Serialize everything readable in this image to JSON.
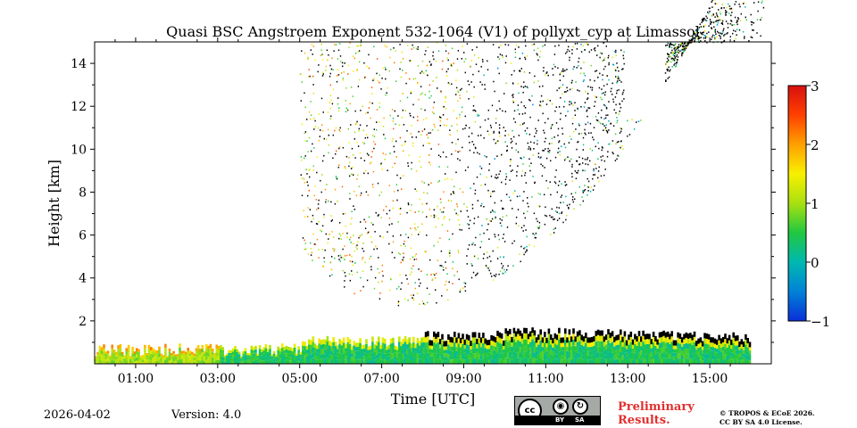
{
  "chart_data": {
    "type": "heatmap",
    "title": "Quasi BSC Angstroem Exponent 532-1064 (V1) of pollyxt_cyp at Limassol",
    "xlabel": "Time [UTC]",
    "ylabel": "Height [km]",
    "x_range_hours": [
      0.0,
      16.5
    ],
    "y_range_km": [
      0,
      15
    ],
    "x_ticks": [
      {
        "value": 1,
        "label": "01:00"
      },
      {
        "value": 3,
        "label": "03:00"
      },
      {
        "value": 5,
        "label": "05:00"
      },
      {
        "value": 7,
        "label": "07:00"
      },
      {
        "value": 9,
        "label": "09:00"
      },
      {
        "value": 11,
        "label": "11:00"
      },
      {
        "value": 13,
        "label": "13:00"
      },
      {
        "value": 15,
        "label": "15:00"
      }
    ],
    "y_ticks": [
      {
        "value": 2,
        "label": "2"
      },
      {
        "value": 4,
        "label": "4"
      },
      {
        "value": 6,
        "label": "6"
      },
      {
        "value": 8,
        "label": "8"
      },
      {
        "value": 10,
        "label": "10"
      },
      {
        "value": 12,
        "label": "12"
      },
      {
        "value": 14,
        "label": "14"
      }
    ],
    "colorbar": {
      "min": -1,
      "max": 3,
      "ticks": [
        {
          "value": 3,
          "label": "3"
        },
        {
          "value": 2,
          "label": "2"
        },
        {
          "value": 1,
          "label": "1"
        },
        {
          "value": 0,
          "label": "0"
        },
        {
          "value": -1,
          "label": "−1"
        }
      ],
      "colormap": [
        "#0a2ed8",
        "#0082d8",
        "#00b8b0",
        "#20c840",
        "#a8e010",
        "#f8f000",
        "#ffa000",
        "#ff4000",
        "#d81010"
      ]
    },
    "nodata_color": "#000000",
    "features": [
      {
        "name": "boundary-layer aerosol",
        "start_h": 0.0,
        "end_h": 16.0,
        "height_km": [
          0,
          1.3
        ],
        "typical_value": 0.4
      },
      {
        "name": "upper sparse signal",
        "start_h": 5.0,
        "end_h": 16.3,
        "height_km": [
          2.5,
          15
        ],
        "typical_value": 1.0
      }
    ]
  },
  "footer": {
    "date": "2026-04-02",
    "version": "Version: 4.0",
    "preliminary": [
      "Preliminary",
      "Results."
    ],
    "copyright": [
      "© TROPOS & ECoE 2026.",
      "CC BY SA 4.0 License."
    ],
    "license": {
      "badge": "cc",
      "by": "BY",
      "sa": "SA"
    }
  }
}
